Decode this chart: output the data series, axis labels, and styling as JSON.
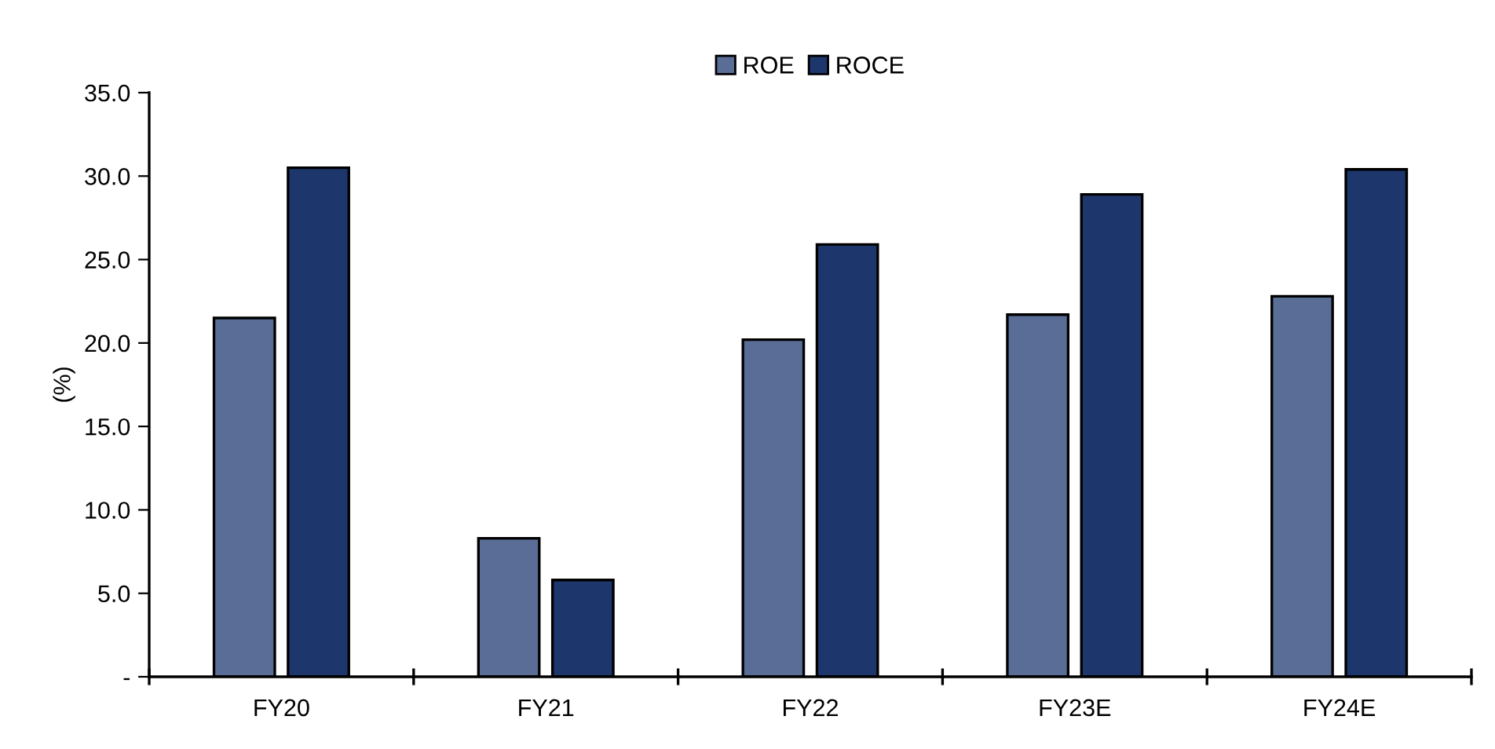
{
  "chart_data": {
    "type": "bar",
    "ylabel": "(%)",
    "categories": [
      "FY20",
      "FY21",
      "FY22",
      "FY23E",
      "FY24E"
    ],
    "series": [
      {
        "name": "ROE",
        "color": "#5a6d96",
        "values": [
          21.5,
          8.3,
          20.2,
          21.7,
          22.8
        ]
      },
      {
        "name": "ROCE",
        "color": "#1d366b",
        "values": [
          30.5,
          5.8,
          25.9,
          28.9,
          30.4
        ]
      }
    ],
    "ylim": [
      0,
      35
    ],
    "yticks": [
      {
        "value": 0,
        "label": "-"
      },
      {
        "value": 5,
        "label": "5.0"
      },
      {
        "value": 10,
        "label": "10.0"
      },
      {
        "value": 15,
        "label": "15.0"
      },
      {
        "value": 20,
        "label": "20.0"
      },
      {
        "value": 25,
        "label": "25.0"
      },
      {
        "value": 30,
        "label": "30.0"
      },
      {
        "value": 35,
        "label": "35.0"
      }
    ],
    "grid": false,
    "legend": "top"
  }
}
